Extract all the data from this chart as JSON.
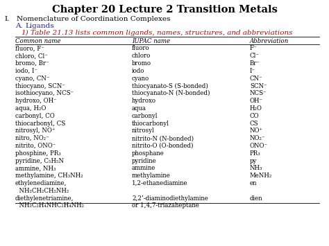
{
  "title": "Chapter 20 Lecture 2 Transition Metals",
  "outline_line1": "I.    Nomenclature of Coordination Complexes",
  "outline_line2_prefix": "A.",
  "outline_line2_text": "Ligands",
  "point_prefix": "1)",
  "point_text": "Table 21.13 lists common ligands, names, structures, and abbreviations",
  "col_headers": [
    "Common name",
    "IUPAC name",
    "Abbreviation"
  ],
  "table_rows": [
    [
      "fluoro, F⁻",
      "fluoro",
      "F⁻"
    ],
    [
      "chloro, Cl⁻",
      "chloro",
      "Cl⁻"
    ],
    [
      "bromo, Br⁻",
      "bromo",
      "Br⁻"
    ],
    [
      "iodo, I⁻",
      "iodo",
      "I⁻"
    ],
    [
      "cyano, CN⁻",
      "cyano",
      "CN⁻"
    ],
    [
      "thiocyano, SCN⁻",
      "thiocyanato-S (S-bonded)",
      "SCN⁻"
    ],
    [
      "isothiocyano, NCS⁻",
      "thiocyanato-N (N-bonded)",
      "NCS⁻"
    ],
    [
      "hydroxo, OH⁻",
      "hydroxo",
      "OH⁻"
    ],
    [
      "aqua, H₂O",
      "aqua",
      "H₂O"
    ],
    [
      "carbonyl, CO",
      "carbonyl",
      "CO"
    ],
    [
      "thiocarbonyl, CS",
      "thiocarbonyl",
      "CS"
    ],
    [
      "nitrosyl, NO⁺",
      "nitrosyl",
      "NO⁺"
    ],
    [
      "nitro, NO₂⁻",
      "nitrito-N (N-bonded)",
      "NO₂⁻"
    ],
    [
      "nitrito, ONO⁻",
      "nitrito-O (O-bonded)",
      "ONO⁻"
    ],
    [
      "phosphine, PR₃",
      "phosphane",
      "PR₃"
    ],
    [
      "pyridine, C₅H₅N",
      "pyridine",
      "py"
    ],
    [
      "ammine, NH₃",
      "ammine",
      "NH₃"
    ],
    [
      "methylamine, CH₃NH₂",
      "methylamine",
      "MeNH₂"
    ],
    [
      "ethylenediamine,",
      "1,2-ethanediamine",
      "en"
    ],
    [
      "  NH₂CH₂CH₂NH₂",
      "",
      ""
    ],
    [
      "diethylenetriamine,",
      "2,2’-diaminodiethylamine",
      "dien"
    ],
    [
      "  NH₂C₂H₄NHC₂H₄NH₂",
      "or 1,4,7-triazaheptane",
      ""
    ]
  ],
  "background_color": "#ffffff",
  "title_color": "#000000",
  "outline_color": "#000000",
  "ligands_color": "#1a1aaa",
  "point_color": "#cc0000",
  "header_color": "#000000",
  "row_color": "#000000",
  "title_fontsize": 10.5,
  "body_fontsize": 7.5,
  "table_fontsize": 6.2,
  "header_fontsize": 6.2
}
